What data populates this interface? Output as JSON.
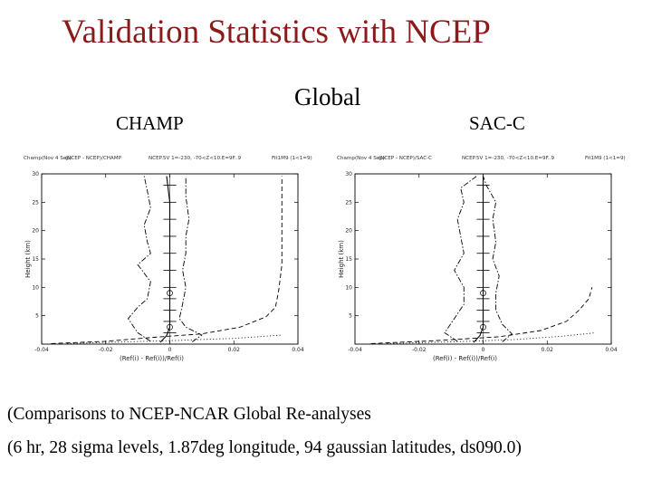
{
  "title": "Validation Statistics with NCEP",
  "subtitle": "Global",
  "panels": [
    {
      "label": "CHAMP",
      "header": [
        "Champ",
        "(Nov 4 Sep)",
        "(NCEP - NCEP)/CHAMP",
        "NCEP.5V 1=-230, -70<Z<10.E=9F..9",
        "Fit1M9 (1<1=9)"
      ],
      "ylabel": "Height (km)",
      "xlabel": "(Ref(i) - Ref(i))/Ref(i)"
    },
    {
      "label": "SAC-C",
      "header": [
        "Champ",
        "(Nov 4 Sep)",
        "(NCEP - NCEP)/SAC-C",
        "NCEP.5V 1=-230, -70<Z<10.E=9F..9",
        "Fit1M9 (1<1=9)"
      ],
      "ylabel": "Height (km)",
      "xlabel": "(Ref(i) - Ref(i))/Ref(i)"
    }
  ],
  "footnotes": [
    "(Comparisons to NCEP-NCAR Global Re-analyses",
    "(6 hr, 28 sigma levels, 1.87deg longitude, 94 gaussian latitudes, ds090.0)"
  ],
  "chart_data": [
    {
      "type": "line",
      "title": "CHAMP",
      "xlabel": "(Ref(i) - Ref(i))/Ref(i)",
      "ylabel": "Height (km)",
      "xlim": [
        -0.04,
        0.04
      ],
      "ylim": [
        0,
        30
      ],
      "x_ticks": [
        -0.04,
        -0.02,
        0.0,
        0.02,
        0.04
      ],
      "x_tick_labels": [
        "-0.04",
        "-0.02",
        "0",
        "0.02",
        "0.04"
      ],
      "y_ticks": [
        5,
        10,
        15,
        20,
        25,
        30
      ],
      "y_tick_labels": [
        "5",
        "10",
        "15",
        "20",
        "25",
        "30"
      ],
      "series": [
        {
          "style": "solid",
          "points": [
            [
              -0.003,
              0.3
            ],
            [
              -0.001,
              1.5
            ],
            [
              0.0,
              3
            ],
            [
              0.0,
              6
            ],
            [
              0.0,
              10
            ],
            [
              0.0,
              15
            ],
            [
              0.0,
              20
            ],
            [
              0.0,
              25
            ],
            [
              -0.001,
              29.6
            ]
          ]
        },
        {
          "style": "dashdot",
          "points": [
            [
              -0.006,
              0.5
            ],
            [
              -0.01,
              2
            ],
            [
              -0.013,
              4.5
            ],
            [
              -0.01,
              6.5
            ],
            [
              -0.007,
              8
            ],
            [
              -0.006,
              11
            ],
            [
              -0.01,
              14
            ],
            [
              -0.006,
              16
            ],
            [
              -0.007,
              18
            ],
            [
              -0.008,
              21
            ],
            [
              -0.006,
              24
            ],
            [
              -0.007,
              27
            ],
            [
              -0.008,
              29.6
            ]
          ]
        },
        {
          "style": "dashdot",
          "points": [
            [
              0.007,
              0.4
            ],
            [
              0.01,
              1.6
            ],
            [
              0.005,
              3
            ],
            [
              0.003,
              4.5
            ],
            [
              0.004,
              7
            ],
            [
              0.005,
              10
            ],
            [
              0.004,
              13
            ],
            [
              0.005,
              16
            ],
            [
              0.005,
              19
            ],
            [
              0.006,
              22
            ],
            [
              0.005,
              26
            ],
            [
              0.005,
              29.6
            ]
          ]
        },
        {
          "style": "dashed",
          "points": [
            [
              -0.037,
              0.1
            ],
            [
              -0.02,
              0.5
            ],
            [
              -0.005,
              1.2
            ],
            [
              0.01,
              1.8
            ],
            [
              0.022,
              3
            ],
            [
              0.03,
              4.8
            ],
            [
              0.033,
              6.5
            ],
            [
              0.034,
              9.5
            ],
            [
              0.035,
              14
            ],
            [
              0.035,
              20
            ],
            [
              0.035,
              26
            ],
            [
              0.035,
              29.6
            ]
          ]
        },
        {
          "style": "dotted",
          "points": [
            [
              -0.032,
              0.1
            ],
            [
              -0.02,
              0.3
            ],
            [
              0.0,
              0.6
            ],
            [
              0.02,
              1.0
            ],
            [
              0.035,
              1.6
            ]
          ]
        }
      ]
    },
    {
      "type": "line",
      "title": "SAC-C",
      "xlabel": "(Ref(i) - Ref(i))/Ref(i)",
      "ylabel": "Height (km)",
      "xlim": [
        -0.04,
        0.04
      ],
      "ylim": [
        0,
        30
      ],
      "x_ticks": [
        -0.04,
        -0.02,
        0.0,
        0.02,
        0.04
      ],
      "x_tick_labels": [
        "-0.04",
        "-0.02",
        "0",
        "0.02",
        "0.04"
      ],
      "y_ticks": [
        5,
        10,
        15,
        20,
        25,
        30
      ],
      "y_tick_labels": [
        "5",
        "10",
        "15",
        "20",
        "25",
        "30"
      ],
      "series": [
        {
          "style": "solid",
          "points": [
            [
              -0.003,
              0.3
            ],
            [
              -0.001,
              1.5
            ],
            [
              0.0,
              3
            ],
            [
              0.0,
              6
            ],
            [
              0.0,
              10
            ],
            [
              0.0,
              15
            ],
            [
              0.0,
              20
            ],
            [
              0.0,
              25
            ],
            [
              0.0,
              29.6
            ]
          ]
        },
        {
          "style": "dashdot",
          "points": [
            [
              -0.008,
              0.5
            ],
            [
              -0.012,
              2
            ],
            [
              -0.009,
              4.5
            ],
            [
              -0.006,
              7
            ],
            [
              -0.006,
              10
            ],
            [
              -0.009,
              13
            ],
            [
              -0.006,
              16
            ],
            [
              -0.007,
              19
            ],
            [
              -0.008,
              22
            ],
            [
              -0.006,
              25
            ],
            [
              -0.007,
              27.5
            ],
            [
              -0.002,
              29.6
            ]
          ]
        },
        {
          "style": "dashdot",
          "points": [
            [
              0.006,
              0.4
            ],
            [
              0.009,
              1.8
            ],
            [
              0.006,
              3.5
            ],
            [
              0.004,
              6
            ],
            [
              0.004,
              9
            ],
            [
              0.005,
              12
            ],
            [
              0.003,
              15
            ],
            [
              0.004,
              18
            ],
            [
              0.003,
              22
            ],
            [
              0.004,
              25
            ],
            [
              0.001,
              28
            ],
            [
              0.0,
              29.6
            ]
          ]
        },
        {
          "style": "dashed",
          "points": [
            [
              -0.035,
              0.1
            ],
            [
              -0.015,
              0.6
            ],
            [
              0.005,
              1.3
            ],
            [
              0.018,
              2.4
            ],
            [
              0.026,
              4
            ],
            [
              0.03,
              6
            ],
            [
              0.033,
              8
            ],
            [
              0.034,
              10
            ]
          ]
        },
        {
          "style": "dotted",
          "points": [
            [
              -0.03,
              0.1
            ],
            [
              -0.01,
              0.4
            ],
            [
              0.01,
              0.8
            ],
            [
              0.025,
              1.4
            ],
            [
              0.035,
              2.0
            ]
          ]
        }
      ]
    }
  ]
}
